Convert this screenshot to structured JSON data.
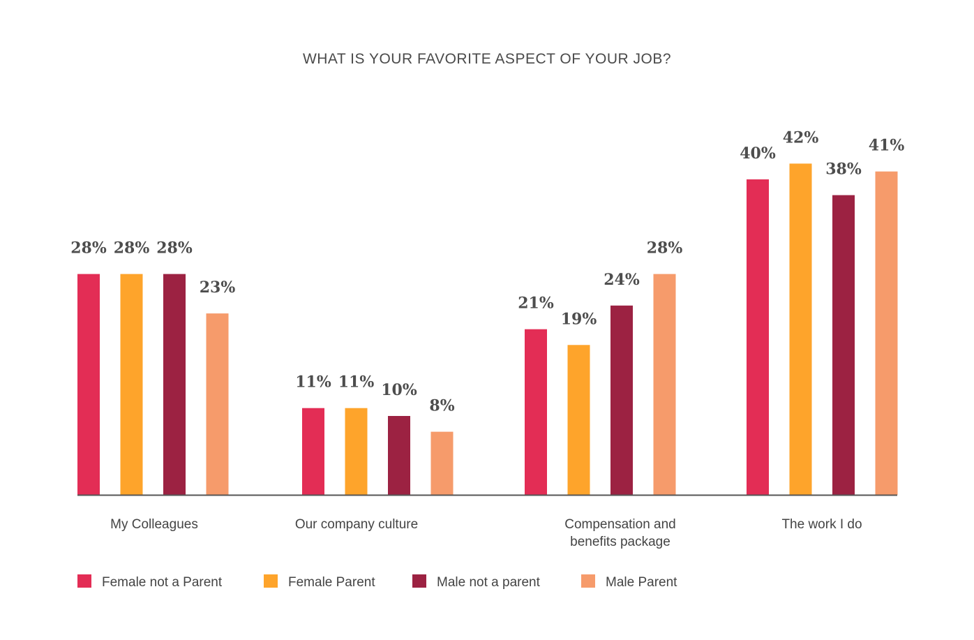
{
  "chart_data": {
    "type": "bar",
    "title": "WHAT IS YOUR FAVORITE ASPECT OF YOUR JOB?",
    "categories": [
      [
        "My Colleagues"
      ],
      [
        "Our company culture"
      ],
      [
        "Compensation and",
        "benefits package"
      ],
      [
        "The work I do"
      ]
    ],
    "series": [
      {
        "name": "Female not a Parent",
        "color": "#e32d55",
        "values": [
          28,
          11,
          21,
          40
        ],
        "labels": [
          "28%",
          "11%",
          "21%",
          "40%"
        ]
      },
      {
        "name": "Female Parent",
        "color": "#fea42b",
        "values": [
          28,
          11,
          19,
          42
        ],
        "labels": [
          "28%",
          "11%",
          "19%",
          "42%"
        ]
      },
      {
        "name": "Male not a parent",
        "color": "#9c2242",
        "values": [
          28,
          10,
          24,
          38
        ],
        "labels": [
          "28%",
          "10%",
          "24%",
          "38%"
        ]
      },
      {
        "name": "Male Parent",
        "color": "#f69b6b",
        "values": [
          23,
          8,
          28,
          41
        ],
        "labels": [
          "23%",
          "8%",
          "28%",
          "41%"
        ]
      }
    ],
    "value_unit": "%",
    "axis_color": "#555555",
    "ylim": [
      0,
      42
    ],
    "legend_position": "bottom-left",
    "grid": false
  }
}
